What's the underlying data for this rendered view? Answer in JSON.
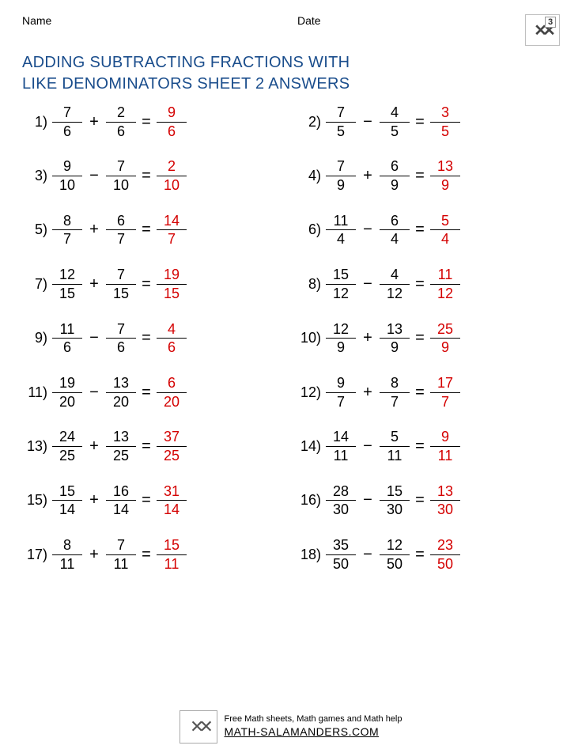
{
  "header": {
    "name_label": "Name",
    "date_label": "Date",
    "grade_badge": "3"
  },
  "title_line1": "ADDING SUBTRACTING FRACTIONS WITH",
  "title_line2": "LIKE DENOMINATORS SHEET 2 ANSWERS",
  "colors": {
    "title": "#1a4d8c",
    "answer": "#d40000",
    "text": "#000000"
  },
  "problems": [
    {
      "num": "1)",
      "a_n": "7",
      "a_d": "6",
      "op": "+",
      "b_n": "2",
      "b_d": "6",
      "r_n": "9",
      "r_d": "6"
    },
    {
      "num": "2)",
      "a_n": "7",
      "a_d": "5",
      "op": "−",
      "b_n": "4",
      "b_d": "5",
      "r_n": "3",
      "r_d": "5"
    },
    {
      "num": "3)",
      "a_n": "9",
      "a_d": "10",
      "op": "−",
      "b_n": "7",
      "b_d": "10",
      "r_n": "2",
      "r_d": "10"
    },
    {
      "num": "4)",
      "a_n": "7",
      "a_d": "9",
      "op": "+",
      "b_n": "6",
      "b_d": "9",
      "r_n": "13",
      "r_d": "9"
    },
    {
      "num": "5)",
      "a_n": "8",
      "a_d": "7",
      "op": "+",
      "b_n": "6",
      "b_d": "7",
      "r_n": "14",
      "r_d": "7"
    },
    {
      "num": "6)",
      "a_n": "11",
      "a_d": "4",
      "op": "−",
      "b_n": "6",
      "b_d": "4",
      "r_n": "5",
      "r_d": "4"
    },
    {
      "num": "7)",
      "a_n": "12",
      "a_d": "15",
      "op": "+",
      "b_n": "7",
      "b_d": "15",
      "r_n": "19",
      "r_d": "15"
    },
    {
      "num": "8)",
      "a_n": "15",
      "a_d": "12",
      "op": "−",
      "b_n": "4",
      "b_d": "12",
      "r_n": "11",
      "r_d": "12"
    },
    {
      "num": "9)",
      "a_n": "11",
      "a_d": "6",
      "op": "−",
      "b_n": "7",
      "b_d": "6",
      "r_n": "4",
      "r_d": "6"
    },
    {
      "num": "10)",
      "a_n": "12",
      "a_d": "9",
      "op": "+",
      "b_n": "13",
      "b_d": "9",
      "r_n": "25",
      "r_d": "9"
    },
    {
      "num": "11)",
      "a_n": "19",
      "a_d": "20",
      "op": "−",
      "b_n": "13",
      "b_d": "20",
      "r_n": "6",
      "r_d": "20"
    },
    {
      "num": "12)",
      "a_n": "9",
      "a_d": "7",
      "op": "+",
      "b_n": "8",
      "b_d": "7",
      "r_n": "17",
      "r_d": "7"
    },
    {
      "num": "13)",
      "a_n": "24",
      "a_d": "25",
      "op": "+",
      "b_n": "13",
      "b_d": "25",
      "r_n": "37",
      "r_d": "25"
    },
    {
      "num": "14)",
      "a_n": "14",
      "a_d": "11",
      "op": "−",
      "b_n": "5",
      "b_d": "11",
      "r_n": "9",
      "r_d": "11"
    },
    {
      "num": "15)",
      "a_n": "15",
      "a_d": "14",
      "op": "+",
      "b_n": "16",
      "b_d": "14",
      "r_n": "31",
      "r_d": "14"
    },
    {
      "num": "16)",
      "a_n": "28",
      "a_d": "30",
      "op": "−",
      "b_n": "15",
      "b_d": "30",
      "r_n": "13",
      "r_d": "30"
    },
    {
      "num": "17)",
      "a_n": "8",
      "a_d": "11",
      "op": "+",
      "b_n": "7",
      "b_d": "11",
      "r_n": "15",
      "r_d": "11"
    },
    {
      "num": "18)",
      "a_n": "35",
      "a_d": "50",
      "op": "−",
      "b_n": "12",
      "b_d": "50",
      "r_n": "23",
      "r_d": "50"
    }
  ],
  "footer": {
    "tagline": "Free Math sheets, Math games and Math help",
    "url": "MATH-SALAMANDERS.COM"
  }
}
